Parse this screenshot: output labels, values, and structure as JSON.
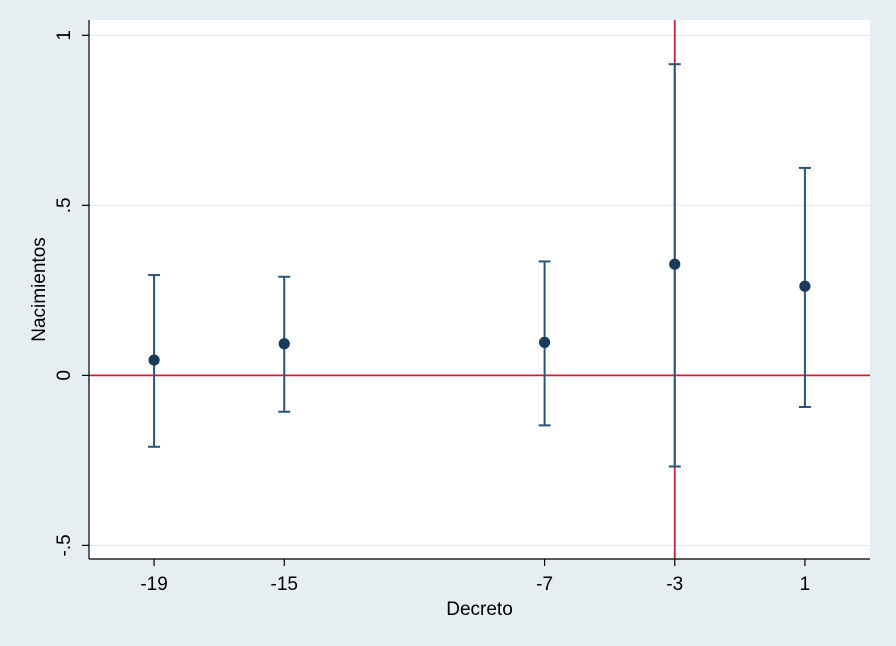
{
  "chart_data": {
    "type": "scatter",
    "title": "",
    "xlabel": "Decreto",
    "ylabel": "Nacimientos",
    "x_ticks": [
      -19,
      -15,
      -7,
      -3,
      1
    ],
    "x_tick_labels": [
      "-19",
      "-15",
      "-7",
      "-3",
      "1"
    ],
    "y_ticks": [
      -0.5,
      0,
      0.5,
      1
    ],
    "y_tick_labels": [
      "-.5",
      "0",
      ".5",
      "1"
    ],
    "xlim": [
      -21,
      3
    ],
    "ylim": [
      -0.54,
      1.045
    ],
    "grid": true,
    "reference_lines": {
      "horizontal_y": 0,
      "vertical_x": -3,
      "color": "#cc1f36"
    },
    "points": [
      {
        "x": -19,
        "estimate": 0.045,
        "ci_low": -0.21,
        "ci_high": 0.295
      },
      {
        "x": -15,
        "estimate": 0.093,
        "ci_low": -0.107,
        "ci_high": 0.29
      },
      {
        "x": -7,
        "estimate": 0.097,
        "ci_low": -0.147,
        "ci_high": 0.335
      },
      {
        "x": -3,
        "estimate": 0.327,
        "ci_low": -0.268,
        "ci_high": 0.915
      },
      {
        "x": 1,
        "estimate": 0.262,
        "ci_low": -0.093,
        "ci_high": 0.61
      }
    ],
    "colors": {
      "marker": "#1a3a5c",
      "errorbar": "#2a5477",
      "grid": "#e3ecef",
      "background": "#e6eef2",
      "plot_background": "#ffffff"
    }
  }
}
